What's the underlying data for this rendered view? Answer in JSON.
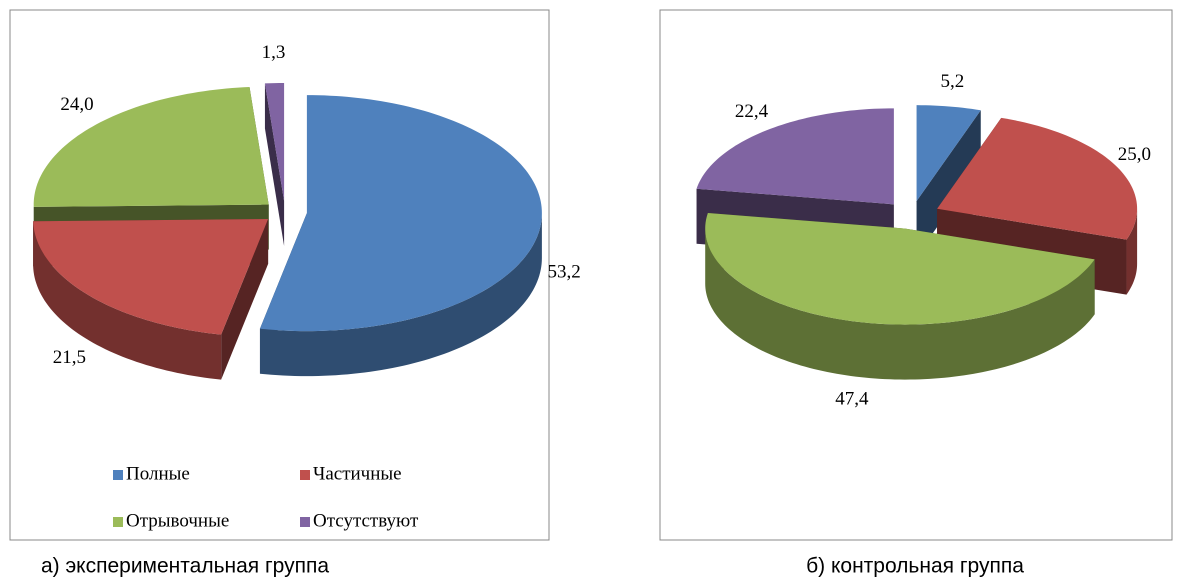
{
  "chart_data": [
    {
      "type": "pie",
      "title": "а) экспериментальная группа",
      "categories": [
        "Полные",
        "Частичные",
        "Отрывочные",
        "Отсутствуют"
      ],
      "values": [
        53.2,
        21.5,
        24.0,
        1.3
      ],
      "value_labels": [
        "53,2",
        "21,5",
        "24,0",
        "1,3"
      ],
      "colors": [
        "#4f81bd",
        "#c0504d",
        "#9bbb59",
        "#8064a2"
      ],
      "legend": "bottom"
    },
    {
      "type": "pie",
      "title": "б) контрольная группа",
      "categories": [
        "Полные",
        "Частичные",
        "Отрывочные",
        "Отсутствуют"
      ],
      "values": [
        5.2,
        25.0,
        47.4,
        22.4
      ],
      "value_labels": [
        "5,2",
        "25,0",
        "47,4",
        "22,4"
      ],
      "colors": [
        "#4f81bd",
        "#c0504d",
        "#9bbb59",
        "#8064a2"
      ]
    }
  ]
}
